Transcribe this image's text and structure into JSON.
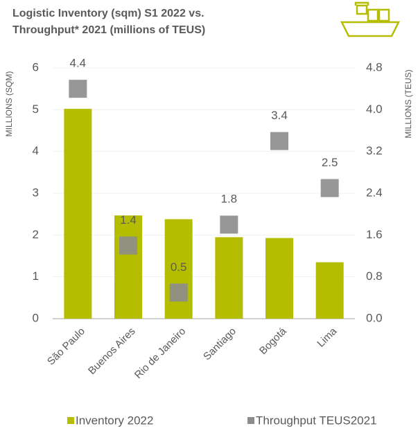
{
  "chart_data": {
    "type": "combo",
    "title": [
      "Logistic Inventory (sqm) S1 2022 vs.",
      "Throughput* 2021 (millions of TEUS)"
    ],
    "y_label": "MILLIONS (SQM)",
    "y2_label": "MILLIONS (TEUS)",
    "categories": [
      "São Paulo",
      "Buenos Aires",
      "Rio de Janeiro",
      "Santiago",
      "Bogotá",
      "Lima"
    ],
    "series": [
      {
        "name": "Inventory 2022",
        "type": "bar",
        "color": "#b5bd00",
        "values": [
          5.02,
          2.47,
          2.38,
          1.95,
          1.93,
          1.35
        ]
      },
      {
        "name": "Throughput TEUS2021",
        "type": "scatter",
        "axis": "y2",
        "color": "#8c8c8c",
        "values": [
          4.4,
          1.4,
          0.5,
          1.8,
          3.4,
          2.5
        ]
      }
    ],
    "ylim": [
      0,
      6
    ],
    "yticks": [
      0,
      1,
      2,
      3,
      4,
      5,
      6
    ],
    "y2lim": [
      0,
      4.8
    ],
    "y2ticks": [
      {
        "value": 0,
        "label": "0.0"
      },
      0.8,
      1.6,
      2.4,
      3.2,
      {
        "value": 4,
        "label": "4.0"
      },
      4.8
    ],
    "grid": true,
    "legend": "bottom"
  }
}
